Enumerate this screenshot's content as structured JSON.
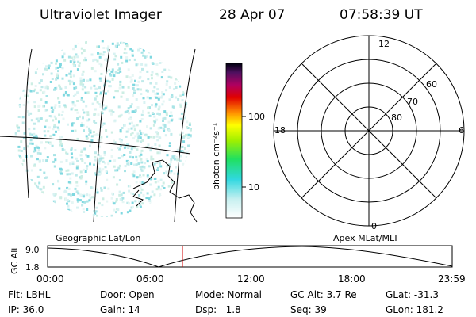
{
  "header": {
    "title": "Ultraviolet Imager",
    "date": "28 Apr 07",
    "time": "07:58:39 UT"
  },
  "colorbar": {
    "label": "photon cm⁻²s⁻¹",
    "ticks": [
      "100",
      "10"
    ]
  },
  "polar": {
    "mlt_labels": [
      "12",
      "6",
      "18",
      "0"
    ],
    "lat_labels": [
      "60",
      "70",
      "80"
    ]
  },
  "timeline": {
    "left_label": "Geographic Lat/Lon",
    "right_label": "Apex MLat/MLT",
    "y_label": "GC Alt",
    "y_ticks": [
      "9.0",
      "1.8"
    ],
    "x_ticks": [
      "00:00",
      "06:00",
      "12:00",
      "18:00",
      "23:59"
    ]
  },
  "footer": {
    "rows": [
      [
        "Flt: LBHL",
        "Door: Open",
        "Mode: Normal",
        "GC Alt: 3.7 Re",
        "GLat: -31.3"
      ],
      [
        "IP: 36.0",
        "Gain: 14",
        "Dsp:   1.8",
        "Seq: 39",
        "GLon: 181.2"
      ]
    ]
  }
}
